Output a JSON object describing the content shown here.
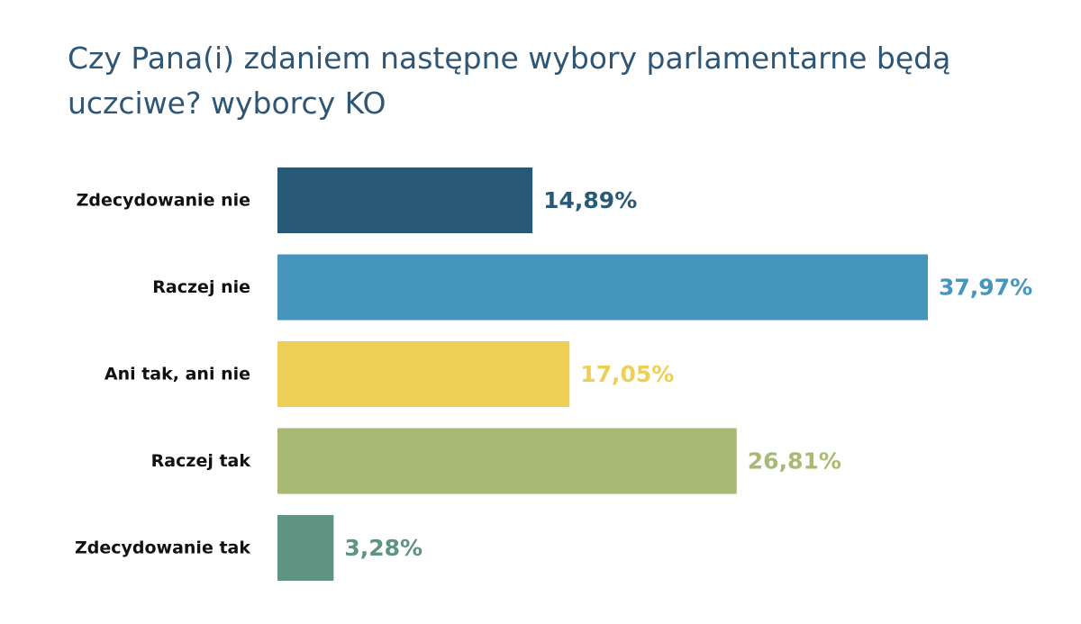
{
  "chart_data": {
    "type": "bar",
    "orientation": "horizontal",
    "title": "Czy Pana(i) zdaniem następne wybory parlamentarne będą uczciwe? wyborcy KO",
    "categories": [
      "Zdecydowanie nie",
      "Raczej nie",
      "Ani tak, ani nie",
      "Raczej tak",
      "Zdecydowanie tak"
    ],
    "values": [
      14.89,
      37.97,
      17.05,
      26.81,
      3.28
    ],
    "value_labels": [
      "14,89%",
      "37,97%",
      "17,05%",
      "26,81%",
      "3,28%"
    ],
    "colors": [
      "#285a78",
      "#4595bd",
      "#eecf55",
      "#a8b974",
      "#5e9481"
    ],
    "xlim": [
      0,
      37.97
    ],
    "grid": false,
    "legend": "none"
  }
}
